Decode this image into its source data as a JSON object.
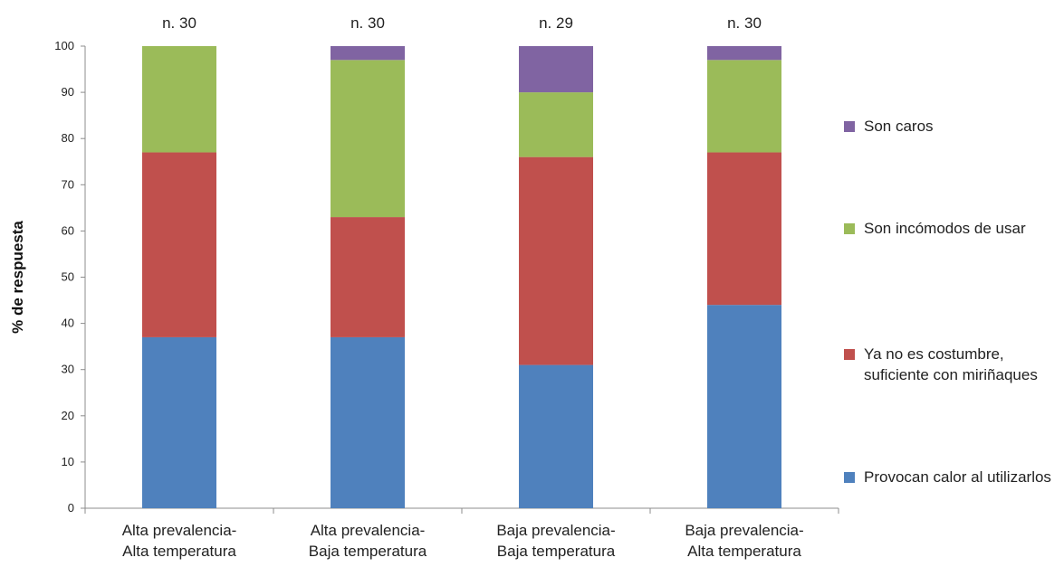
{
  "chart_data": {
    "type": "bar",
    "stacked": true,
    "title": "",
    "xlabel": "",
    "ylabel": "% de respuesta",
    "ylim": [
      0,
      100
    ],
    "yticks": [
      0,
      10,
      20,
      30,
      40,
      50,
      60,
      70,
      80,
      90,
      100
    ],
    "grid": false,
    "legend_position": "right",
    "categories": [
      [
        "Alta prevalencia-",
        "Alta temperatura"
      ],
      [
        "Alta prevalencia-",
        "Baja temperatura"
      ],
      [
        "Baja prevalencia-",
        "Baja temperatura"
      ],
      [
        "Baja prevalencia-",
        "Alta temperatura"
      ]
    ],
    "sample_sizes": [
      "n. 30",
      "n. 30",
      "n. 29",
      "n. 30"
    ],
    "series": [
      {
        "name": "Provocan calor al utilizarlos",
        "color": "#4f81bd",
        "values": [
          37,
          37,
          31,
          44
        ]
      },
      {
        "name": "Ya no es costumbre, suficiente con miriñaques",
        "color": "#c0504d",
        "values": [
          40,
          26,
          45,
          33
        ]
      },
      {
        "name": "Son incómodos de usar",
        "color": "#9bbb59",
        "values": [
          23,
          34,
          14,
          20
        ]
      },
      {
        "name": "Son caros",
        "color": "#8064a2",
        "values": [
          0,
          3,
          10,
          3
        ]
      }
    ]
  },
  "legend": {
    "items": [
      {
        "label": "Son caros",
        "color": "#8064a2"
      },
      {
        "label": "Son incómodos de usar",
        "color": "#9bbb59"
      },
      {
        "label": "Ya no es costumbre, suficiente con miriñaques",
        "color": "#c0504d"
      },
      {
        "label": "Provocan calor al utilizarlos",
        "color": "#4f81bd"
      }
    ]
  }
}
